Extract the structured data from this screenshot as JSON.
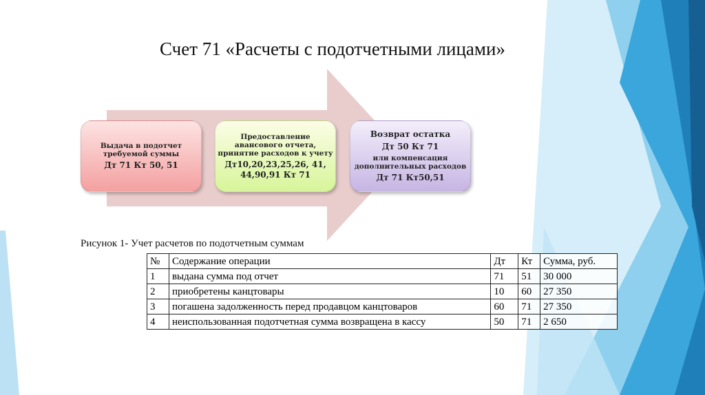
{
  "title": "Счет 71 «Расчеты с подотчетными лицами»",
  "diagram": {
    "step1": {
      "text": "Выдача в подотчет требуемой суммы",
      "entry": "Дт 71 Кт 50, 51"
    },
    "step2": {
      "text": "Предоставление авансового отчета, принятие расходов к учету",
      "entry": "Дт10,20,23,25,26, 41, 44,90,91 Кт 71"
    },
    "step3": {
      "text": "Возврат остатка",
      "entry": "Дт 50 Кт 71",
      "alt_text": "или компенсация дополнительных расходов",
      "alt_entry": "Дт 71 Кт50,51"
    }
  },
  "caption": "Рисунок 1- Учет расчетов по подотчетным суммам",
  "table": {
    "headers": [
      "№",
      "Содержание операции",
      "Дт",
      "Кт",
      "Сумма, руб."
    ],
    "rows": [
      [
        "1",
        "выдана сумма под отчет",
        "71",
        "51",
        "30 000"
      ],
      [
        "2",
        "приобретены канцтовары",
        "10",
        "60",
        "27 350"
      ],
      [
        "3",
        "погашена задолженность перед продавцом канцтоваров",
        "60",
        "71",
        "27 350"
      ],
      [
        "4",
        "неиспользованная подотчетная сумма возвращена в кассу",
        "50",
        "71",
        "2 650"
      ]
    ]
  },
  "colors": {
    "accent": "#2e9fd8",
    "arrow": "#e9cccc"
  }
}
